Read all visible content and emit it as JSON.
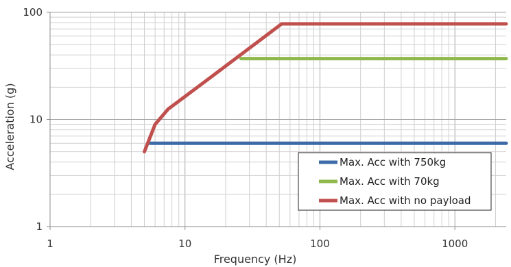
{
  "chart_data": {
    "type": "line",
    "title": "",
    "xlabel": "Frequency (Hz)",
    "ylabel": "Acceleration  (g)",
    "x_scale": "log",
    "y_scale": "log",
    "xlim": [
      1,
      2400
    ],
    "ylim": [
      1,
      100
    ],
    "x_ticks": [
      1,
      10,
      100,
      1000
    ],
    "x_tick_labels": [
      "1",
      "10",
      "100",
      "1000"
    ],
    "y_ticks": [
      1,
      10,
      100
    ],
    "y_tick_labels": [
      "1",
      "10",
      "100"
    ],
    "grid": true,
    "legend_position": "bottom-right",
    "series": [
      {
        "name": "Max. Acc with 750kg",
        "color": "#3D6BA8",
        "x": [
          5.5,
          2400
        ],
        "y": [
          6,
          6
        ]
      },
      {
        "name": "Max. Acc with 70kg",
        "color": "#8FB84D",
        "x": [
          26,
          2400
        ],
        "y": [
          37,
          37
        ]
      },
      {
        "name": "Max. Acc with no payload",
        "color": "#C0504D",
        "x": [
          5,
          6,
          7.5,
          15,
          52,
          2400
        ],
        "y": [
          5,
          9,
          12.5,
          24,
          78,
          78
        ]
      }
    ]
  }
}
